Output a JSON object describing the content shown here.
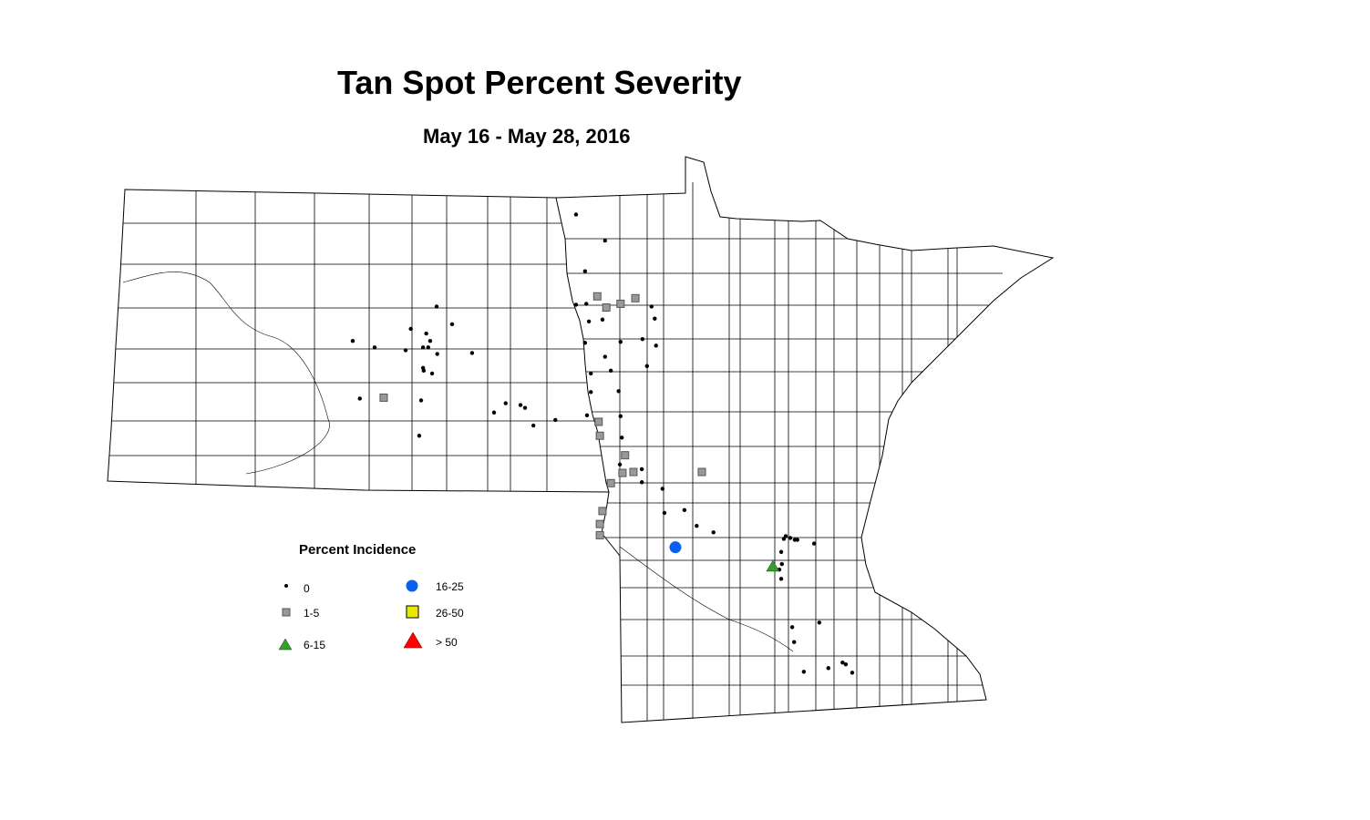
{
  "title": "Tan Spot Percent Severity",
  "subtitle": "May 16 - May 28, 2016",
  "legend": {
    "title": "Percent Incidence",
    "classes": [
      {
        "label": "0",
        "symbol": "dot",
        "color": "#000000"
      },
      {
        "label": "1-5",
        "symbol": "square",
        "color": "#999999"
      },
      {
        "label": "6-15",
        "symbol": "triangle",
        "color": "#33a02c"
      },
      {
        "label": "16-25",
        "symbol": "circle",
        "color": "#0a5ff0"
      },
      {
        "label": "26-50",
        "symbol": "square",
        "color": "#e8e800"
      },
      {
        "label": "> 50",
        "symbol": "triangle",
        "color": "#ff0000"
      }
    ]
  },
  "map": {
    "region": [
      "North Dakota",
      "Minnesota"
    ],
    "boundaries": "county",
    "points": [
      {
        "lat": 48.75,
        "lon": -96.89,
        "cls": "0"
      },
      {
        "lat": 48.47,
        "lon": -96.44,
        "cls": "0"
      },
      {
        "lat": 48.14,
        "lon": -96.75,
        "cls": "0"
      },
      {
        "lat": 47.78,
        "lon": -96.89,
        "cls": "0"
      },
      {
        "lat": 47.79,
        "lon": -96.73,
        "cls": "0"
      },
      {
        "lat": 47.62,
        "lon": -96.48,
        "cls": "0"
      },
      {
        "lat": 47.6,
        "lon": -96.69,
        "cls": "0"
      },
      {
        "lat": 47.76,
        "lon": -95.72,
        "cls": "0"
      },
      {
        "lat": 47.63,
        "lon": -95.67,
        "cls": "0"
      },
      {
        "lat": 47.76,
        "lon": -99.05,
        "cls": "0"
      },
      {
        "lat": 47.57,
        "lon": -98.81,
        "cls": "0"
      },
      {
        "lat": 47.52,
        "lon": -99.45,
        "cls": "0"
      },
      {
        "lat": 47.47,
        "lon": -99.21,
        "cls": "0"
      },
      {
        "lat": 47.39,
        "lon": -100.35,
        "cls": "0"
      },
      {
        "lat": 47.32,
        "lon": -100.01,
        "cls": "0"
      },
      {
        "lat": 47.29,
        "lon": -99.53,
        "cls": "0"
      },
      {
        "lat": 47.32,
        "lon": -99.26,
        "cls": "0"
      },
      {
        "lat": 47.32,
        "lon": -99.18,
        "cls": "0"
      },
      {
        "lat": 47.25,
        "lon": -99.04,
        "cls": "0"
      },
      {
        "lat": 47.26,
        "lon": -98.5,
        "cls": "0"
      },
      {
        "lat": 47.39,
        "lon": -99.15,
        "cls": "0"
      },
      {
        "lat": 47.37,
        "lon": -96.75,
        "cls": "0"
      },
      {
        "lat": 47.38,
        "lon": -96.2,
        "cls": "0"
      },
      {
        "lat": 47.41,
        "lon": -95.86,
        "cls": "0"
      },
      {
        "lat": 47.34,
        "lon": -95.65,
        "cls": "0"
      },
      {
        "lat": 47.22,
        "lon": -96.44,
        "cls": "0"
      },
      {
        "lat": 47.12,
        "lon": -95.79,
        "cls": "0"
      },
      {
        "lat": 47.1,
        "lon": -99.26,
        "cls": "0"
      },
      {
        "lat": 47.07,
        "lon": -99.25,
        "cls": "0"
      },
      {
        "lat": 47.04,
        "lon": -99.12,
        "cls": "0"
      },
      {
        "lat": 47.07,
        "lon": -96.35,
        "cls": "0"
      },
      {
        "lat": 47.04,
        "lon": -96.66,
        "cls": "0"
      },
      {
        "lat": 46.77,
        "lon": -100.24,
        "cls": "0"
      },
      {
        "lat": 46.75,
        "lon": -99.29,
        "cls": "0"
      },
      {
        "lat": 46.62,
        "lon": -98.16,
        "cls": "0"
      },
      {
        "lat": 46.72,
        "lon": -97.98,
        "cls": "0"
      },
      {
        "lat": 46.7,
        "lon": -97.75,
        "cls": "0"
      },
      {
        "lat": 46.67,
        "lon": -97.68,
        "cls": "0"
      },
      {
        "lat": 46.48,
        "lon": -97.55,
        "cls": "0"
      },
      {
        "lat": 46.54,
        "lon": -97.21,
        "cls": "0"
      },
      {
        "lat": 46.59,
        "lon": -96.72,
        "cls": "0"
      },
      {
        "lat": 46.84,
        "lon": -96.66,
        "cls": "0"
      },
      {
        "lat": 46.85,
        "lon": -96.23,
        "cls": "0"
      },
      {
        "lat": 46.58,
        "lon": -96.2,
        "cls": "0"
      },
      {
        "lat": 46.37,
        "lon": -99.32,
        "cls": "0"
      },
      {
        "lat": 46.35,
        "lon": -96.18,
        "cls": "0"
      },
      {
        "lat": 46.06,
        "lon": -96.21,
        "cls": "0"
      },
      {
        "lat": 46.01,
        "lon": -95.87,
        "cls": "0"
      },
      {
        "lat": 45.87,
        "lon": -95.87,
        "cls": "0"
      },
      {
        "lat": 45.8,
        "lon": -95.55,
        "cls": "0"
      },
      {
        "lat": 45.54,
        "lon": -95.52,
        "cls": "0"
      },
      {
        "lat": 45.57,
        "lon": -95.21,
        "cls": "0"
      },
      {
        "lat": 45.4,
        "lon": -95.02,
        "cls": "0"
      },
      {
        "lat": 45.33,
        "lon": -94.76,
        "cls": "0"
      },
      {
        "lat": 45.26,
        "lon": -93.67,
        "cls": "0"
      },
      {
        "lat": 45.29,
        "lon": -93.64,
        "cls": "0"
      },
      {
        "lat": 45.27,
        "lon": -93.57,
        "cls": "0"
      },
      {
        "lat": 45.25,
        "lon": -93.5,
        "cls": "0"
      },
      {
        "lat": 45.25,
        "lon": -93.46,
        "cls": "0"
      },
      {
        "lat": 45.21,
        "lon": -93.2,
        "cls": "0"
      },
      {
        "lat": 45.12,
        "lon": -93.71,
        "cls": "0"
      },
      {
        "lat": 44.99,
        "lon": -93.7,
        "cls": "0"
      },
      {
        "lat": 44.83,
        "lon": -93.71,
        "cls": "0"
      },
      {
        "lat": 44.93,
        "lon": -93.74,
        "cls": "0"
      },
      {
        "lat": 44.31,
        "lon": -93.54,
        "cls": "0"
      },
      {
        "lat": 44.36,
        "lon": -93.12,
        "cls": "0"
      },
      {
        "lat": 44.15,
        "lon": -93.51,
        "cls": "0"
      },
      {
        "lat": 43.83,
        "lon": -93.36,
        "cls": "0"
      },
      {
        "lat": 43.87,
        "lon": -92.98,
        "cls": "0"
      },
      {
        "lat": 43.93,
        "lon": -92.76,
        "cls": "0"
      },
      {
        "lat": 43.91,
        "lon": -92.71,
        "cls": "0"
      },
      {
        "lat": 43.82,
        "lon": -92.61,
        "cls": "0"
      },
      {
        "lat": 47.87,
        "lon": -96.56,
        "cls": "1-5"
      },
      {
        "lat": 47.75,
        "lon": -96.42,
        "cls": "1-5"
      },
      {
        "lat": 47.79,
        "lon": -96.2,
        "cls": "1-5"
      },
      {
        "lat": 47.85,
        "lon": -95.97,
        "cls": "1-5"
      },
      {
        "lat": 46.78,
        "lon": -99.87,
        "cls": "1-5"
      },
      {
        "lat": 46.52,
        "lon": -96.54,
        "cls": "1-5"
      },
      {
        "lat": 46.37,
        "lon": -96.52,
        "cls": "1-5"
      },
      {
        "lat": 46.16,
        "lon": -96.13,
        "cls": "1-5"
      },
      {
        "lat": 45.97,
        "lon": -96.17,
        "cls": "1-5"
      },
      {
        "lat": 45.98,
        "lon": -96.0,
        "cls": "1-5"
      },
      {
        "lat": 45.98,
        "lon": -94.94,
        "cls": "1-5"
      },
      {
        "lat": 45.86,
        "lon": -96.35,
        "cls": "1-5"
      },
      {
        "lat": 45.56,
        "lon": -96.48,
        "cls": "1-5"
      },
      {
        "lat": 45.42,
        "lon": -96.52,
        "cls": "1-5"
      },
      {
        "lat": 45.3,
        "lon": -96.52,
        "cls": "1-5"
      },
      {
        "lat": 45.17,
        "lon": -95.35,
        "cls": "16-25"
      },
      {
        "lat": 44.96,
        "lon": -93.84,
        "cls": "6-15"
      }
    ]
  }
}
